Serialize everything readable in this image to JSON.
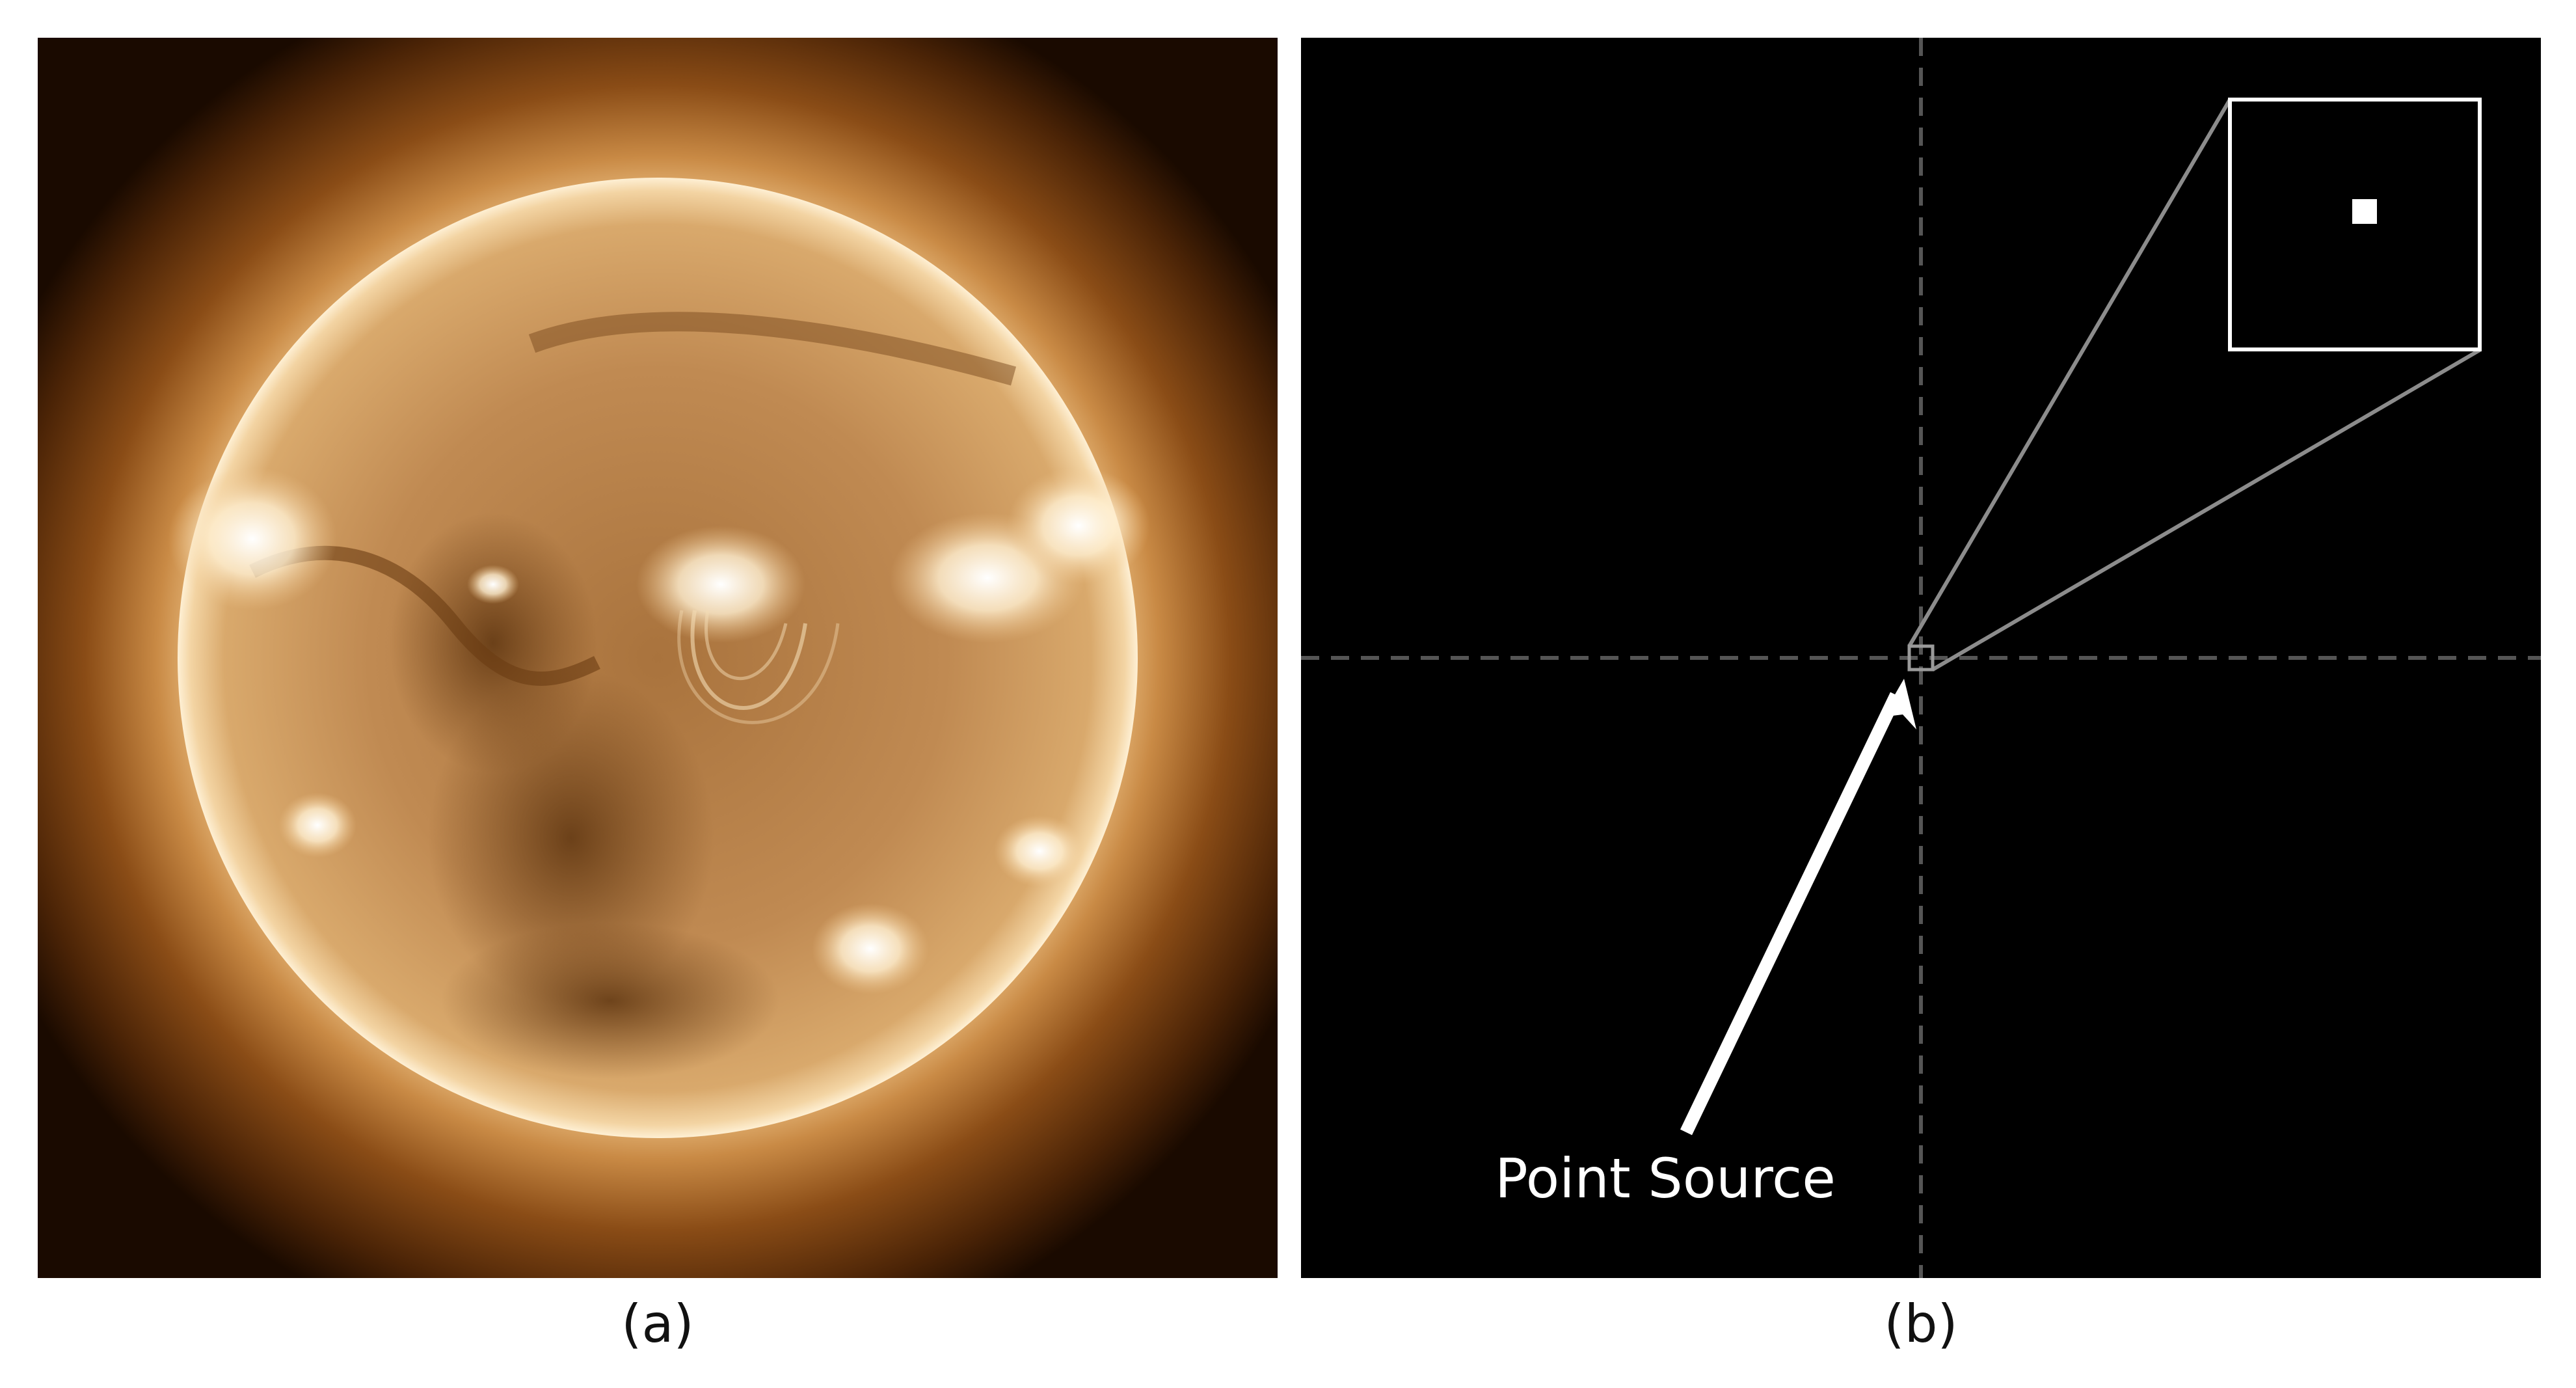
{
  "panels": [
    {
      "id": "a",
      "caption": "(a)",
      "content": "solar-disk-euv-image",
      "colors": {
        "limb_glow": "#fff0cf",
        "disk_mid": "#c9935a",
        "disk_dark": "#7a4a1d",
        "corona_inner": "#c98a45",
        "corona_outer": "#4a2306",
        "background": "#1a0a00"
      }
    },
    {
      "id": "b",
      "caption": "(b)",
      "content": "point-source-image",
      "annotation": "Point Source",
      "colors": {
        "background": "#000000",
        "crosshair": "#555555",
        "zoom_lines": "#8c8c8c",
        "inset_frame": "#ffffff",
        "point": "#ffffff"
      }
    }
  ]
}
